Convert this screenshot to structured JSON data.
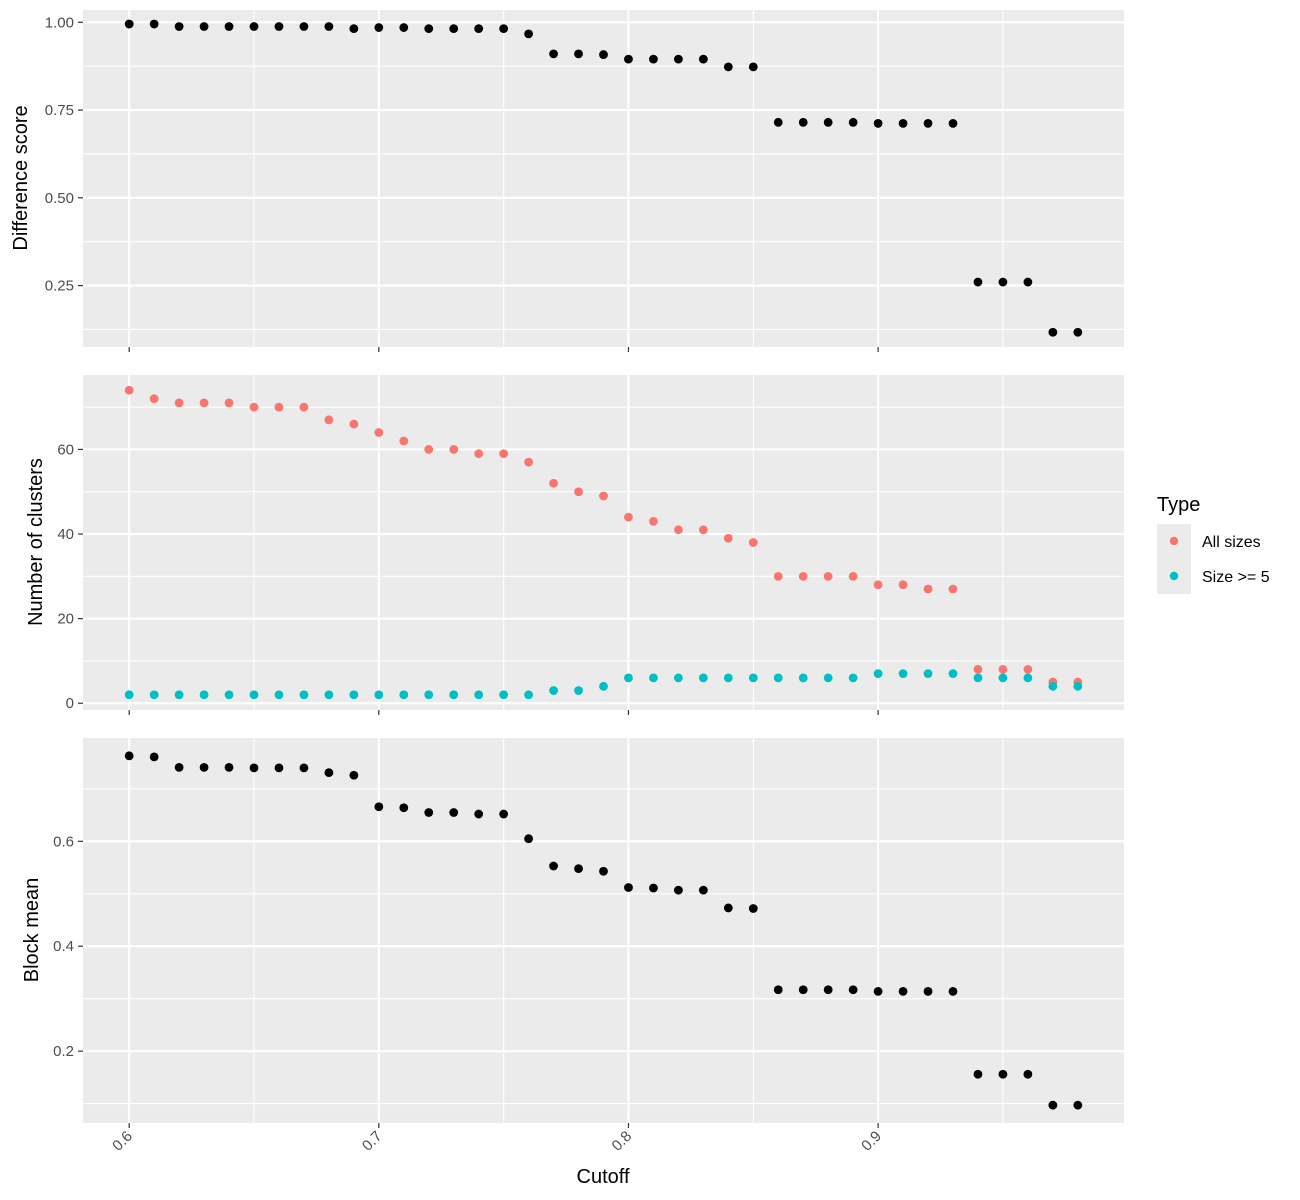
{
  "colors": {
    "panel_background": "#ebebeb",
    "grid": "#ffffff",
    "black_points": "#000000",
    "all_sizes": "#f8766d",
    "size_ge_5": "#00bfc4"
  },
  "chart_data": [
    {
      "type": "scatter",
      "panel": "top",
      "ylabel": "Difference score",
      "xlim": [
        0.5815,
        0.9985
      ],
      "ylim": [
        0.075,
        1.035
      ],
      "y_ticks": [
        0.25,
        0.5,
        0.75,
        1.0
      ],
      "y_tick_labels": [
        "0.25",
        "0.50",
        "0.75",
        "1.00"
      ],
      "x_ticks": [
        0.6,
        0.7,
        0.8,
        0.9
      ],
      "grid": true,
      "series": [
        {
          "color": "black_points",
          "x": [
            0.6,
            0.61,
            0.62,
            0.63,
            0.64,
            0.65,
            0.66,
            0.67,
            0.68,
            0.69,
            0.7,
            0.71,
            0.72,
            0.73,
            0.74,
            0.75,
            0.76,
            0.77,
            0.78,
            0.79,
            0.8,
            0.81,
            0.82,
            0.83,
            0.84,
            0.85,
            0.86,
            0.87,
            0.88,
            0.89,
            0.9,
            0.91,
            0.92,
            0.93,
            0.94,
            0.95,
            0.96,
            0.97,
            0.98
          ],
          "y": [
            0.995,
            0.995,
            0.988,
            0.988,
            0.988,
            0.988,
            0.988,
            0.988,
            0.988,
            0.982,
            0.985,
            0.985,
            0.982,
            0.982,
            0.982,
            0.982,
            0.967,
            0.91,
            0.91,
            0.908,
            0.895,
            0.895,
            0.895,
            0.895,
            0.873,
            0.873,
            0.715,
            0.715,
            0.715,
            0.715,
            0.712,
            0.712,
            0.712,
            0.712,
            0.26,
            0.26,
            0.26,
            0.117,
            0.117
          ]
        }
      ]
    },
    {
      "type": "scatter",
      "panel": "middle",
      "ylabel": "Number of clusters",
      "xlim": [
        0.5815,
        0.9985
      ],
      "ylim": [
        -1.6,
        77.6
      ],
      "y_ticks": [
        0,
        20,
        40,
        60
      ],
      "y_tick_labels": [
        "0",
        "20",
        "40",
        "60"
      ],
      "x_ticks": [
        0.6,
        0.7,
        0.8,
        0.9
      ],
      "grid": true,
      "series": [
        {
          "name": "All sizes",
          "color": "all_sizes",
          "x": [
            0.6,
            0.61,
            0.62,
            0.63,
            0.64,
            0.65,
            0.66,
            0.67,
            0.68,
            0.69,
            0.7,
            0.71,
            0.72,
            0.73,
            0.74,
            0.75,
            0.76,
            0.77,
            0.78,
            0.79,
            0.8,
            0.81,
            0.82,
            0.83,
            0.84,
            0.85,
            0.86,
            0.87,
            0.88,
            0.89,
            0.9,
            0.91,
            0.92,
            0.93,
            0.94,
            0.95,
            0.96,
            0.97,
            0.98
          ],
          "y": [
            74,
            72,
            71,
            71,
            71,
            70,
            70,
            70,
            67,
            66,
            64,
            62,
            60,
            60,
            59,
            59,
            57,
            52,
            50,
            49,
            44,
            43,
            41,
            41,
            39,
            38,
            30,
            30,
            30,
            30,
            28,
            28,
            27,
            27,
            8,
            8,
            8,
            5,
            5
          ]
        },
        {
          "name": "Size >= 5",
          "color": "size_ge_5",
          "x": [
            0.6,
            0.61,
            0.62,
            0.63,
            0.64,
            0.65,
            0.66,
            0.67,
            0.68,
            0.69,
            0.7,
            0.71,
            0.72,
            0.73,
            0.74,
            0.75,
            0.76,
            0.77,
            0.78,
            0.79,
            0.8,
            0.81,
            0.82,
            0.83,
            0.84,
            0.85,
            0.86,
            0.87,
            0.88,
            0.89,
            0.9,
            0.91,
            0.92,
            0.93,
            0.94,
            0.95,
            0.96,
            0.97,
            0.98
          ],
          "y": [
            2,
            2,
            2,
            2,
            2,
            2,
            2,
            2,
            2,
            2,
            2,
            2,
            2,
            2,
            2,
            2,
            2,
            3,
            3,
            4,
            6,
            6,
            6,
            6,
            6,
            6,
            6,
            6,
            6,
            6,
            7,
            7,
            7,
            7,
            6,
            6,
            6,
            4,
            4
          ]
        }
      ]
    },
    {
      "type": "scatter",
      "panel": "bottom",
      "ylabel": "Block mean",
      "xlabel": "Cutoff",
      "xlim": [
        0.5815,
        0.9985
      ],
      "ylim": [
        0.063,
        0.797
      ],
      "y_ticks": [
        0.2,
        0.4,
        0.6
      ],
      "y_tick_labels": [
        "0.2",
        "0.4",
        "0.6"
      ],
      "x_ticks": [
        0.6,
        0.7,
        0.8,
        0.9
      ],
      "x_tick_labels": [
        "0.6",
        "0.7",
        "0.8",
        "0.9"
      ],
      "grid": true,
      "series": [
        {
          "color": "black_points",
          "x": [
            0.6,
            0.61,
            0.62,
            0.63,
            0.64,
            0.65,
            0.66,
            0.67,
            0.68,
            0.69,
            0.7,
            0.71,
            0.72,
            0.73,
            0.74,
            0.75,
            0.76,
            0.77,
            0.78,
            0.79,
            0.8,
            0.81,
            0.82,
            0.83,
            0.84,
            0.85,
            0.86,
            0.87,
            0.88,
            0.89,
            0.9,
            0.91,
            0.92,
            0.93,
            0.94,
            0.95,
            0.96,
            0.97,
            0.98
          ],
          "y": [
            0.763,
            0.761,
            0.741,
            0.741,
            0.741,
            0.74,
            0.74,
            0.74,
            0.731,
            0.726,
            0.666,
            0.664,
            0.655,
            0.655,
            0.652,
            0.652,
            0.605,
            0.553,
            0.548,
            0.543,
            0.512,
            0.511,
            0.507,
            0.507,
            0.473,
            0.472,
            0.317,
            0.317,
            0.317,
            0.317,
            0.314,
            0.314,
            0.314,
            0.314,
            0.156,
            0.156,
            0.156,
            0.097,
            0.097
          ]
        }
      ]
    }
  ],
  "legend": {
    "title": "Type",
    "items": [
      {
        "label": "All sizes",
        "color": "all_sizes"
      },
      {
        "label": "Size >= 5",
        "color": "size_ge_5"
      }
    ],
    "placement": "right"
  }
}
